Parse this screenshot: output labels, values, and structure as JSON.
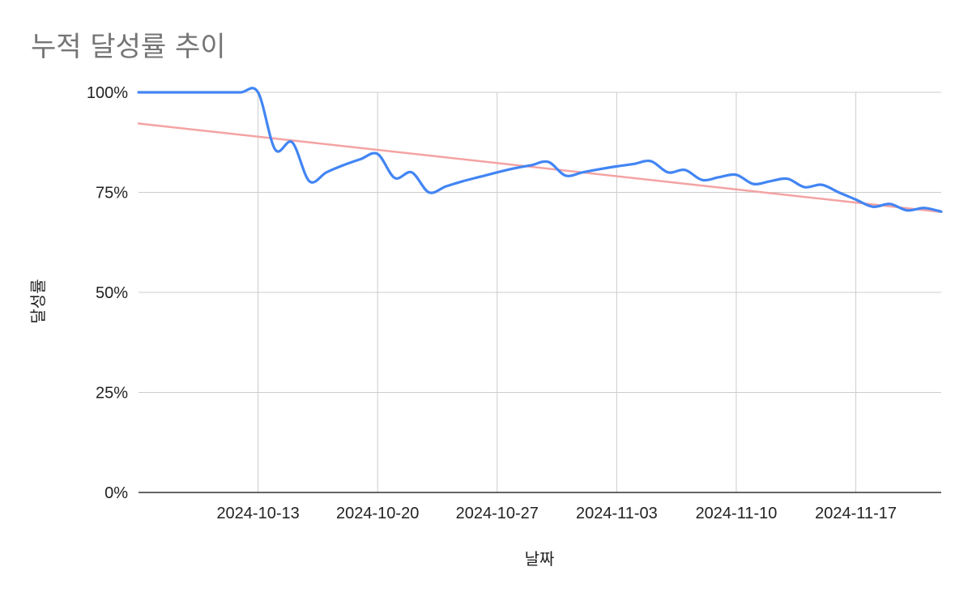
{
  "chart_data": {
    "type": "line",
    "title": "누적 달성률 추이",
    "xlabel": "날짜",
    "ylabel": "달성률",
    "y_tick_labels": [
      "0%",
      "25%",
      "50%",
      "75%",
      "100%"
    ],
    "ylim": [
      0,
      100
    ],
    "xlim": [
      "2024-10-06",
      "2024-11-22"
    ],
    "x_tick_labels": [
      "2024-10-13",
      "2024-10-20",
      "2024-10-27",
      "2024-11-03",
      "2024-11-10",
      "2024-11-17"
    ],
    "grid": true,
    "legend": "none",
    "series": [
      {
        "color": "#4285f4",
        "x": [
          "2024-10-06",
          "2024-10-07",
          "2024-10-08",
          "2024-10-09",
          "2024-10-10",
          "2024-10-11",
          "2024-10-12",
          "2024-10-13",
          "2024-10-14",
          "2024-10-15",
          "2024-10-16",
          "2024-10-17",
          "2024-10-18",
          "2024-10-19",
          "2024-10-20",
          "2024-10-21",
          "2024-10-22",
          "2024-10-23",
          "2024-10-24",
          "2024-10-25",
          "2024-10-26",
          "2024-10-27",
          "2024-10-28",
          "2024-10-29",
          "2024-10-30",
          "2024-10-31",
          "2024-11-01",
          "2024-11-02",
          "2024-11-03",
          "2024-11-04",
          "2024-11-05",
          "2024-11-06",
          "2024-11-07",
          "2024-11-08",
          "2024-11-09",
          "2024-11-10",
          "2024-11-11",
          "2024-11-12",
          "2024-11-13",
          "2024-11-14",
          "2024-11-15",
          "2024-11-16",
          "2024-11-17",
          "2024-11-18",
          "2024-11-19",
          "2024-11-20",
          "2024-11-21",
          "2024-11-22"
        ],
        "values": [
          100,
          100,
          100,
          100,
          100,
          100,
          100,
          100,
          85.7,
          87.5,
          77.8,
          80.0,
          81.8,
          83.3,
          84.6,
          78.6,
          80.0,
          75.0,
          76.5,
          77.8,
          78.9,
          80.0,
          81.0,
          81.8,
          82.6,
          79.2,
          80.0,
          80.8,
          81.5,
          82.1,
          82.8,
          80.0,
          80.6,
          78.1,
          78.8,
          79.4,
          77.1,
          77.8,
          78.4,
          76.3,
          76.9,
          75.0,
          73.2,
          71.4,
          72.1,
          70.5,
          71.1,
          70.2
        ]
      },
      {
        "color": "#f4a3a3",
        "x": [
          "2024-10-06",
          "2024-11-22"
        ],
        "values": [
          92.2,
          70.1
        ]
      }
    ]
  }
}
